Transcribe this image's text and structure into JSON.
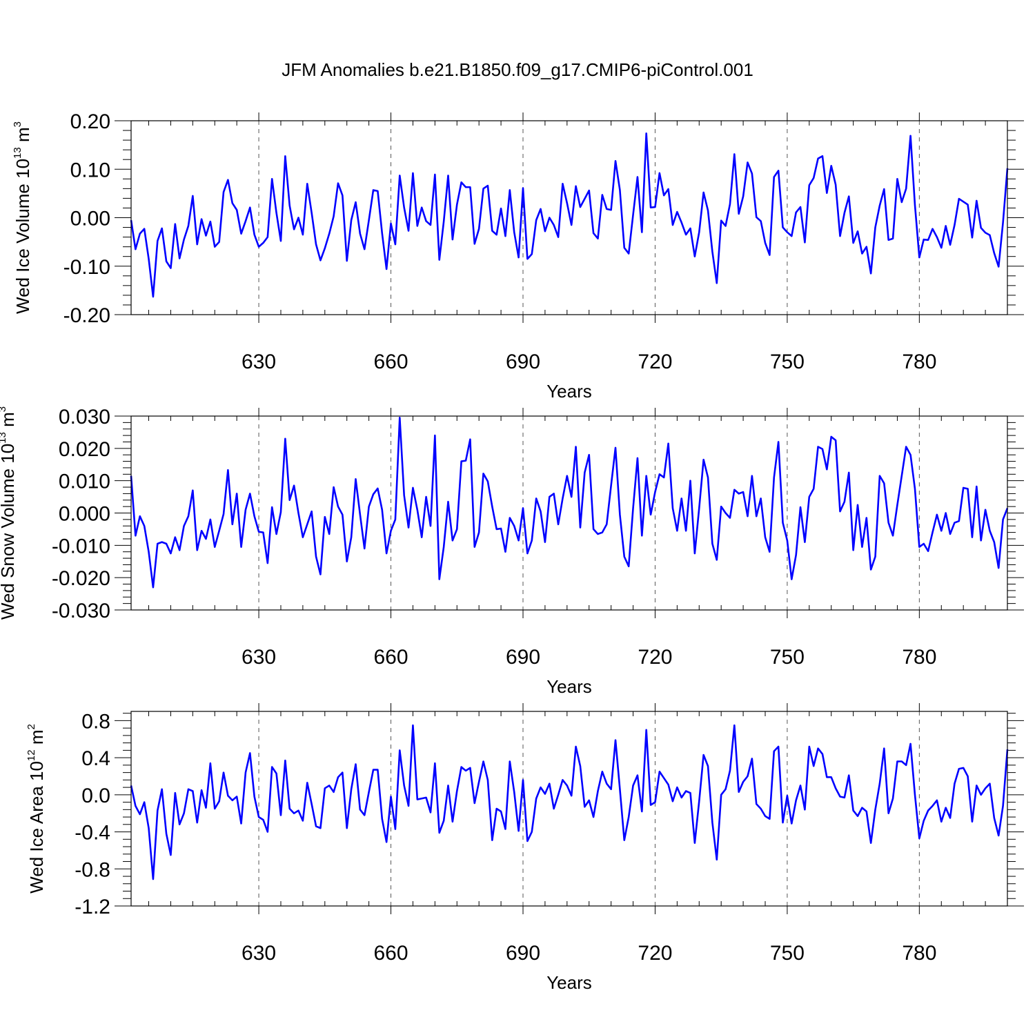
{
  "figure": {
    "title": "JFM Anomalies b.e21.B1850.f09_g17.CMIP6-piControl.001"
  },
  "chart_data": [
    {
      "type": "line",
      "id": "ice-volume",
      "title": "JFM Anomalies b.e21.B1850.f09_g17.CMIP6-piControl.001",
      "xlabel": "Years",
      "ylabel_text": "Wed Ice Volume 10",
      "ylabel_exp": "13",
      "ylabel_unit": " m",
      "ylabel_unit_exp": "3",
      "xlim": [
        601,
        800
      ],
      "ylim": [
        -0.2,
        0.2
      ],
      "xticks": [
        630,
        660,
        690,
        720,
        750,
        780
      ],
      "xtick_labels": [
        "630",
        "660",
        "690",
        "720",
        "750",
        "780"
      ],
      "yticks": [
        -0.2,
        -0.1,
        0.0,
        0.1,
        0.2
      ],
      "ytick_labels": [
        "-0.20",
        "-0.10",
        "0.00",
        "0.10",
        "0.20"
      ],
      "grid": "vertical dashed at major x ticks",
      "line_color": "#0000ff",
      "x_start": 601,
      "values": [
        -0.005,
        -0.065,
        -0.033,
        -0.023,
        -0.085,
        -0.163,
        -0.048,
        -0.022,
        -0.09,
        -0.104,
        -0.013,
        -0.084,
        -0.045,
        -0.017,
        0.045,
        -0.055,
        -0.003,
        -0.037,
        -0.008,
        -0.06,
        -0.05,
        0.053,
        0.078,
        0.03,
        0.016,
        -0.033,
        -0.007,
        0.021,
        -0.035,
        -0.06,
        -0.052,
        -0.04,
        0.08,
        0.01,
        -0.048,
        0.127,
        0.025,
        -0.024,
        0.0,
        -0.035,
        0.07,
        0.01,
        -0.055,
        -0.088,
        -0.063,
        -0.033,
        0.003,
        0.071,
        0.046,
        -0.089,
        -0.005,
        0.032,
        -0.033,
        -0.065,
        -0.005,
        0.057,
        0.055,
        -0.032,
        -0.106,
        -0.012,
        -0.055,
        0.087,
        0.021,
        -0.027,
        0.092,
        -0.017,
        0.021,
        -0.007,
        -0.015,
        0.089,
        -0.087,
        -0.008,
        0.087,
        -0.045,
        0.027,
        0.073,
        0.063,
        0.063,
        -0.054,
        -0.023,
        0.06,
        0.066,
        -0.027,
        -0.035,
        0.019,
        -0.038,
        0.057,
        -0.03,
        -0.082,
        0.061,
        -0.085,
        -0.075,
        -0.005,
        0.018,
        -0.028,
        0.0,
        -0.015,
        -0.04,
        0.07,
        0.03,
        -0.015,
        0.065,
        0.022,
        0.039,
        0.056,
        -0.032,
        -0.043,
        0.047,
        0.018,
        0.016,
        0.117,
        0.057,
        -0.062,
        -0.074,
        0.006,
        0.084,
        -0.03,
        0.174,
        0.021,
        0.022,
        0.092,
        0.046,
        0.059,
        -0.015,
        0.012,
        -0.01,
        -0.035,
        -0.022,
        -0.08,
        -0.03,
        0.052,
        0.015,
        -0.07,
        -0.135,
        -0.006,
        -0.017,
        0.028,
        0.131,
        0.008,
        0.044,
        0.114,
        0.091,
        0.001,
        -0.007,
        -0.052,
        -0.077,
        0.084,
        0.097,
        -0.02,
        -0.03,
        -0.038,
        0.011,
        0.022,
        -0.051,
        0.067,
        0.082,
        0.122,
        0.127,
        0.051,
        0.107,
        0.068,
        -0.038,
        0.01,
        0.044,
        -0.052,
        -0.028,
        -0.074,
        -0.06,
        -0.115,
        -0.02,
        0.025,
        0.059,
        -0.046,
        -0.043,
        0.08,
        0.032,
        0.06,
        0.169,
        0.026,
        -0.082,
        -0.045,
        -0.046,
        -0.023,
        -0.04,
        -0.062,
        -0.017,
        -0.056,
        -0.015,
        0.039,
        0.033,
        0.027,
        -0.041,
        0.035,
        -0.021,
        -0.031,
        -0.036,
        -0.073,
        -0.101,
        -0.01,
        0.102
      ]
    },
    {
      "type": "line",
      "id": "snow-volume",
      "xlabel": "Years",
      "ylabel_text": "Wed Snow Volume 10",
      "ylabel_exp": "13",
      "ylabel_unit": " m",
      "ylabel_unit_exp": "3",
      "xlim": [
        601,
        800
      ],
      "ylim": [
        -0.03,
        0.03
      ],
      "xticks": [
        630,
        660,
        690,
        720,
        750,
        780
      ],
      "xtick_labels": [
        "630",
        "660",
        "690",
        "720",
        "750",
        "780"
      ],
      "yticks": [
        -0.03,
        -0.02,
        -0.01,
        0.0,
        0.01,
        0.02,
        0.03
      ],
      "ytick_labels": [
        "-0.030",
        "-0.020",
        "-0.010",
        "0.000",
        "0.010",
        "0.020",
        "0.030"
      ],
      "grid": "vertical dashed at major x ticks",
      "line_color": "#0000ff",
      "x_start": 601,
      "values": [
        0.0115,
        -0.007,
        -0.001,
        -0.004,
        -0.012,
        -0.023,
        -0.0095,
        -0.009,
        -0.0095,
        -0.0125,
        -0.0075,
        -0.0115,
        -0.004,
        -0.001,
        0.007,
        -0.0115,
        -0.0055,
        -0.008,
        -0.002,
        -0.0105,
        -0.0055,
        -0.0003,
        0.0133,
        -0.0035,
        0.006,
        -0.0105,
        0.001,
        0.006,
        -0.001,
        -0.0058,
        -0.006,
        -0.0155,
        0.0018,
        -0.0065,
        0.0003,
        0.023,
        0.004,
        0.0085,
        0.0,
        -0.0075,
        -0.0035,
        0.0005,
        -0.0135,
        -0.019,
        -0.0012,
        -0.0065,
        0.008,
        0.002,
        -0.0005,
        -0.015,
        -0.0075,
        0.0105,
        -0.0005,
        -0.011,
        0.002,
        0.0058,
        0.0076,
        0.001,
        -0.0125,
        -0.0055,
        -0.002,
        0.0295,
        0.0055,
        -0.0045,
        0.0078,
        0.001,
        -0.0075,
        0.005,
        -0.004,
        0.024,
        -0.0205,
        -0.0105,
        0.0035,
        -0.0085,
        -0.005,
        0.016,
        0.0162,
        0.0228,
        -0.0105,
        -0.006,
        0.0122,
        0.0098,
        0.002,
        -0.005,
        -0.0048,
        -0.012,
        -0.0015,
        -0.004,
        -0.0085,
        0.0015,
        -0.0125,
        -0.0085,
        0.0045,
        0.0005,
        -0.009,
        0.005,
        0.006,
        -0.0035,
        0.0045,
        0.0115,
        0.005,
        0.0205,
        -0.0045,
        0.0125,
        0.018,
        -0.005,
        -0.0065,
        -0.006,
        -0.0035,
        0.0085,
        0.0202,
        -0.0005,
        -0.0135,
        -0.0165,
        0.0015,
        0.017,
        -0.007,
        0.0115,
        -0.0005,
        0.0065,
        0.012,
        0.011,
        0.0215,
        0.0015,
        -0.0055,
        0.0045,
        -0.0055,
        0.01,
        -0.0125,
        0.0015,
        0.0165,
        0.011,
        -0.0095,
        -0.0145,
        0.002,
        0.0,
        -0.0015,
        0.0072,
        0.006,
        0.0065,
        -0.001,
        0.0115,
        -0.001,
        0.0045,
        -0.0075,
        -0.012,
        0.011,
        0.022,
        -0.003,
        -0.0085,
        -0.0205,
        -0.013,
        0.0018,
        -0.009,
        0.005,
        0.0075,
        0.0205,
        0.0198,
        0.0135,
        0.0236,
        0.0225,
        0.0005,
        0.0035,
        0.0125,
        -0.0115,
        0.0025,
        -0.0105,
        -0.0015,
        -0.0175,
        -0.0135,
        0.0115,
        0.0092,
        -0.003,
        -0.007,
        0.0025,
        0.0115,
        0.0205,
        0.018,
        0.0075,
        -0.0105,
        -0.0095,
        -0.0118,
        -0.006,
        -0.0005,
        -0.0055,
        0.0,
        -0.0065,
        -0.003,
        -0.0025,
        0.0078,
        0.0075,
        -0.0075,
        0.0082,
        -0.0085,
        0.001,
        -0.0055,
        -0.009,
        -0.017,
        -0.002,
        0.0015
      ]
    },
    {
      "type": "line",
      "id": "ice-area",
      "xlabel": "Years",
      "ylabel_text": "Wed Ice Area 10",
      "ylabel_exp": "12",
      "ylabel_unit": " m",
      "ylabel_unit_exp": "2",
      "xlim": [
        601,
        800
      ],
      "ylim": [
        -1.2,
        0.9
      ],
      "xticks": [
        630,
        660,
        690,
        720,
        750,
        780
      ],
      "xtick_labels": [
        "630",
        "660",
        "690",
        "720",
        "750",
        "780"
      ],
      "yticks": [
        -1.2,
        -0.8,
        -0.4,
        0.0,
        0.4,
        0.8
      ],
      "ytick_labels": [
        "-1.2",
        "-0.8",
        "-0.4",
        "0.0",
        "0.4",
        "0.8"
      ],
      "grid": "vertical dashed at major x ticks",
      "line_color": "#0000ff",
      "x_start": 601,
      "values": [
        0.1,
        -0.12,
        -0.21,
        -0.08,
        -0.36,
        -0.91,
        -0.17,
        0.06,
        -0.42,
        -0.65,
        0.02,
        -0.32,
        -0.2,
        0.06,
        0.04,
        -0.3,
        0.05,
        -0.14,
        0.34,
        -0.15,
        -0.07,
        0.24,
        -0.01,
        -0.06,
        -0.02,
        -0.31,
        0.24,
        0.45,
        -0.02,
        -0.24,
        -0.27,
        -0.4,
        0.3,
        0.23,
        -0.22,
        0.37,
        -0.15,
        -0.2,
        -0.17,
        -0.28,
        0.13,
        -0.1,
        -0.34,
        -0.36,
        0.07,
        0.1,
        0.03,
        0.19,
        0.24,
        -0.36,
        0.06,
        0.33,
        -0.16,
        -0.22,
        0.03,
        0.27,
        0.27,
        -0.26,
        -0.51,
        -0.02,
        -0.37,
        0.48,
        0.1,
        -0.12,
        0.75,
        -0.05,
        -0.04,
        -0.03,
        -0.19,
        0.34,
        -0.41,
        -0.28,
        0.1,
        -0.29,
        0.04,
        0.3,
        0.26,
        0.29,
        -0.09,
        0.14,
        0.36,
        0.16,
        -0.49,
        -0.15,
        -0.18,
        -0.37,
        0.36,
        0.03,
        -0.39,
        0.16,
        -0.5,
        -0.4,
        -0.04,
        0.08,
        0.01,
        0.12,
        -0.15,
        0.0,
        0.16,
        0.1,
        -0.01,
        0.52,
        0.31,
        -0.13,
        -0.06,
        -0.24,
        0.04,
        0.25,
        0.12,
        0.06,
        0.59,
        0.06,
        -0.49,
        -0.24,
        0.1,
        0.21,
        -0.18,
        0.7,
        -0.11,
        -0.08,
        0.25,
        0.18,
        0.11,
        -0.07,
        0.08,
        -0.03,
        0.04,
        0.02,
        -0.52,
        -0.07,
        0.43,
        0.31,
        -0.3,
        -0.7,
        0.0,
        0.06,
        0.26,
        0.75,
        0.03,
        0.14,
        0.2,
        0.39,
        -0.1,
        -0.15,
        -0.23,
        -0.26,
        0.47,
        0.52,
        -0.3,
        -0.01,
        -0.31,
        -0.06,
        0.1,
        -0.16,
        0.52,
        0.31,
        0.5,
        0.44,
        0.19,
        0.19,
        0.07,
        -0.02,
        -0.03,
        0.21,
        -0.17,
        -0.23,
        -0.14,
        -0.18,
        -0.52,
        -0.16,
        0.12,
        0.5,
        -0.2,
        -0.04,
        0.36,
        0.36,
        0.32,
        0.55,
        0.0,
        -0.47,
        -0.28,
        -0.17,
        -0.12,
        -0.06,
        -0.29,
        -0.14,
        -0.25,
        0.12,
        0.28,
        0.29,
        0.2,
        -0.29,
        0.1,
        0.0,
        0.07,
        0.12,
        -0.25,
        -0.44,
        -0.12,
        0.49
      ]
    }
  ]
}
